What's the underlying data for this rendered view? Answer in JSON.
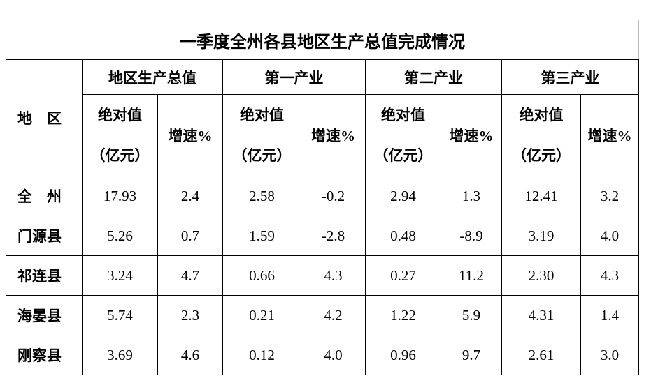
{
  "title": "一季度全州各县地区生产总值完成情况",
  "header": {
    "region": "地　区",
    "groups": [
      {
        "name": "地区生产总值",
        "abs": [
          "绝对值",
          "（亿元）"
        ],
        "growth": "增速%"
      },
      {
        "name": "第一产业",
        "abs": [
          "绝对值",
          "（亿元）"
        ],
        "growth": "增速%"
      },
      {
        "name": "第二产业",
        "abs": [
          "绝对值",
          "（亿元）"
        ],
        "growth": "增速%"
      },
      {
        "name": "第三产业",
        "abs": [
          "绝对值",
          "（亿元）"
        ],
        "growth": "增速%"
      }
    ]
  },
  "table": {
    "rows": [
      [
        "全　州",
        "17.93",
        "2.4",
        "2.58",
        "-0.2",
        "2.94",
        "1.3",
        "12.41",
        "3.2"
      ],
      [
        "门源县",
        "5.26",
        "0.7",
        "1.59",
        "-2.8",
        "0.48",
        "-8.9",
        "3.19",
        "4.0"
      ],
      [
        "祁连县",
        "3.24",
        "4.7",
        "0.66",
        "4.3",
        "0.27",
        "11.2",
        "2.30",
        "4.3"
      ],
      [
        "海晏县",
        "5.74",
        "2.3",
        "0.21",
        "4.2",
        "1.22",
        "5.9",
        "4.31",
        "1.4"
      ],
      [
        "刚察县",
        "3.69",
        "4.6",
        "0.12",
        "4.0",
        "0.96",
        "9.7",
        "2.61",
        "3.0"
      ]
    ]
  }
}
